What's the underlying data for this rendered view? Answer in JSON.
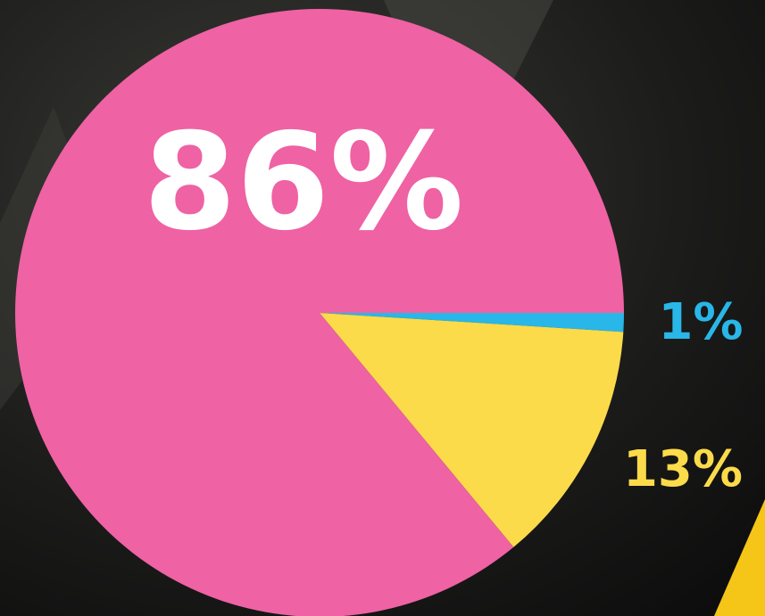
{
  "chart_data": {
    "type": "pie",
    "values": [
      1,
      13,
      86
    ],
    "value_labels": [
      "1%",
      "13%",
      "86%"
    ],
    "colors": [
      "#29b6e8",
      "#fbdb4a",
      "#ef62a3"
    ],
    "label_colors": [
      "#29b6e8",
      "#fbdb4a",
      "#ffffff"
    ],
    "start_angle": 0,
    "direction": "clockwise"
  }
}
